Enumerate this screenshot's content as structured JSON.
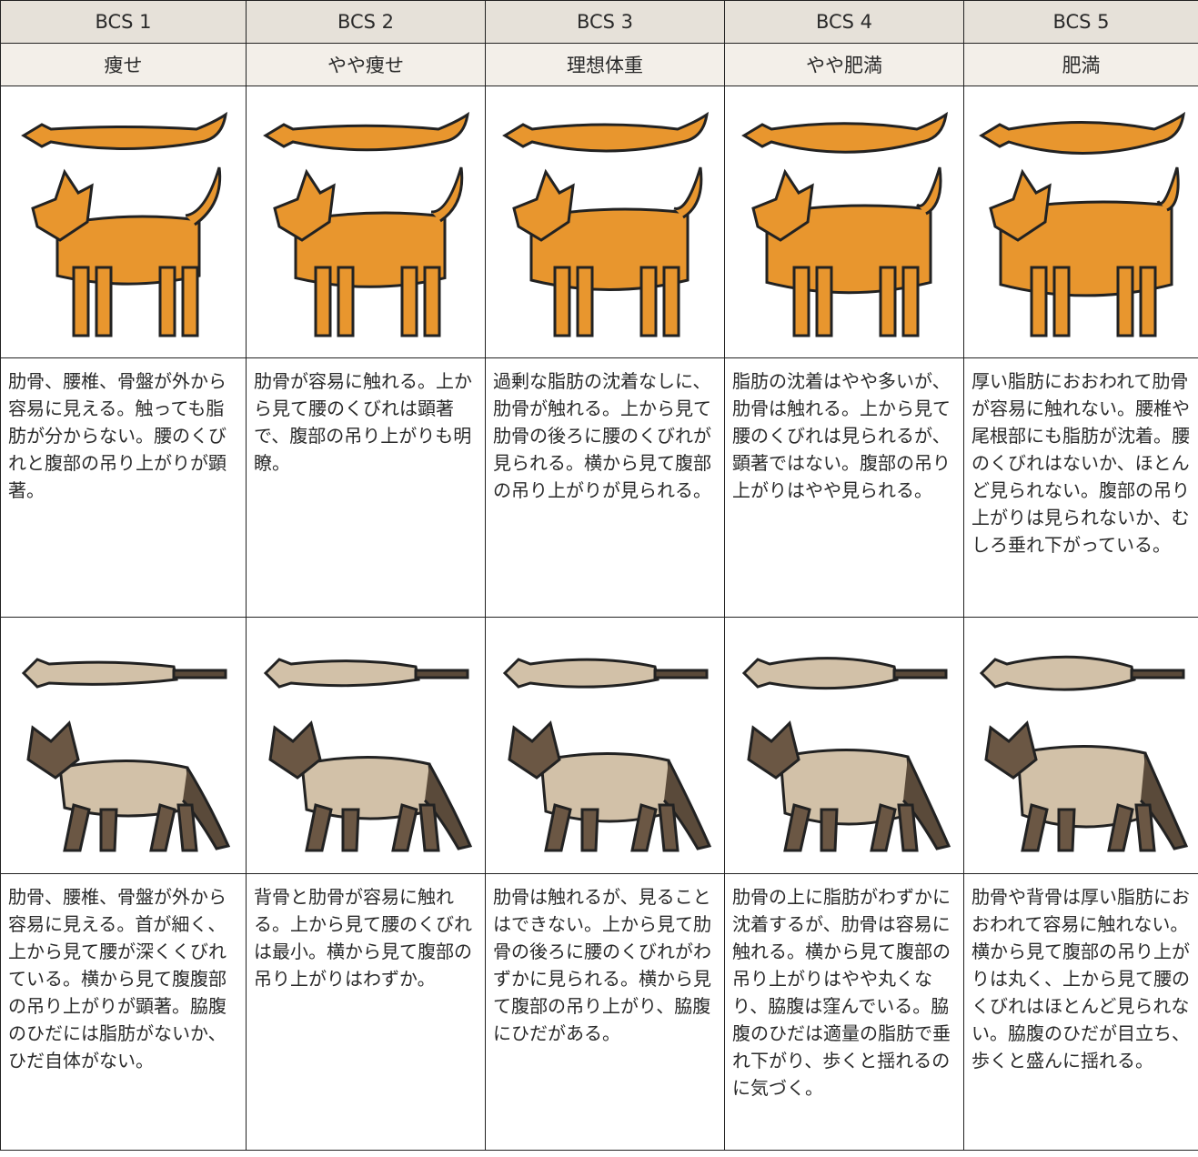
{
  "table": {
    "header": [
      "BCS 1",
      "BCS 2",
      "BCS 3",
      "BCS 4",
      "BCS 5"
    ],
    "labels": [
      "痩せ",
      "やや痩せ",
      "理想体重",
      "やや肥満",
      "肥満"
    ],
    "dog_descriptions": [
      "肋骨、腰椎、骨盤が外から容易に見える。触っても脂肪が分からない。腰のくびれと腹部の吊り上がりが顕著。",
      "肋骨が容易に触れる。上から見て腰のくびれは顕著で、腹部の吊り上がりも明瞭。",
      "過剰な脂肪の沈着なしに、肋骨が触れる。上から見て肋骨の後ろに腰のくびれが見られる。横から見て腹部の吊り上がりが見られる。",
      "脂肪の沈着はやや多いが、肋骨は触れる。上から見て腰のくびれは見られるが、顕著ではない。腹部の吊り上がりはやや見られる。",
      "厚い脂肪におおわれて肋骨が容易に触れない。腰椎や尾根部にも脂肪が沈着。腰のくびれはないか、ほとんど見られない。腹部の吊り上がりは見られないか、むしろ垂れ下がっている。"
    ],
    "cat_descriptions": [
      "肋骨、腰椎、骨盤が外から容易に見える。首が細く、上から見て腰が深くくびれている。横から見て腹腹部の吊り上がりが顕著。脇腹のひだには脂肪がないか、ひだ自体がない。",
      "背骨と肋骨が容易に触れる。上から見て腰のくびれは最小。横から見て腹部の吊り上がりはわずか。",
      "肋骨は触れるが、見ることはできない。上から見て肋骨の後ろに腰のくびれがわずかに見られる。横から見て腹部の吊り上がり、脇腹にひだがある。",
      "肋骨の上に脂肪がわずかに沈着するが、肋骨は容易に触れる。横から見て腹部の吊り上がりはやや丸くなり、脇腹は窪んでいる。脇腹のひだは適量の脂肪で垂れ下がり、歩くと揺れるのに気づく。",
      "肋骨や背骨は厚い脂肪におおわれて容易に触れない。横から見て腹部の吊り上がりは丸く、上から見て腰のくびれはほとんど見られない。脇腹のひだが目立ち、歩くと盛んに揺れる。"
    ]
  }
}
